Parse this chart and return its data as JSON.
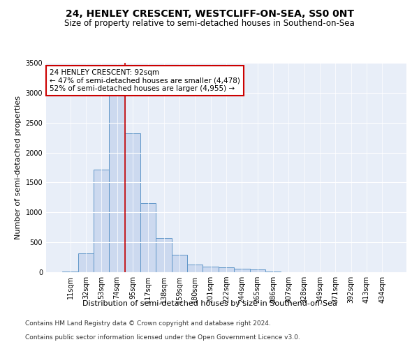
{
  "title": "24, HENLEY CRESCENT, WESTCLIFF-ON-SEA, SS0 0NT",
  "subtitle": "Size of property relative to semi-detached houses in Southend-on-Sea",
  "xlabel": "Distribution of semi-detached houses by size in Southend-on-Sea",
  "ylabel": "Number of semi-detached properties",
  "footer_line1": "Contains HM Land Registry data © Crown copyright and database right 2024.",
  "footer_line2": "Contains public sector information licensed under the Open Government Licence v3.0.",
  "annotation_line1": "24 HENLEY CRESCENT: 92sqm",
  "annotation_line2": "← 47% of semi-detached houses are smaller (4,478)",
  "annotation_line3": "52% of semi-detached houses are larger (4,955) →",
  "bar_categories": [
    "11sqm",
    "32sqm",
    "53sqm",
    "74sqm",
    "95sqm",
    "117sqm",
    "138sqm",
    "159sqm",
    "180sqm",
    "201sqm",
    "222sqm",
    "244sqm",
    "265sqm",
    "286sqm",
    "307sqm",
    "328sqm",
    "349sqm",
    "371sqm",
    "392sqm",
    "413sqm",
    "434sqm"
  ],
  "bar_values": [
    8,
    310,
    1720,
    3000,
    2320,
    1160,
    570,
    290,
    125,
    90,
    85,
    60,
    45,
    10,
    5,
    5,
    2,
    2,
    2,
    2,
    2
  ],
  "bar_color": "#ccd9ef",
  "bar_edge_color": "#6096c8",
  "vline_color": "#cc0000",
  "vline_x": 3.5,
  "ylim": [
    0,
    3500
  ],
  "yticks": [
    0,
    500,
    1000,
    1500,
    2000,
    2500,
    3000,
    3500
  ],
  "background_color": "#e8eef8",
  "annotation_box_facecolor": "#ffffff",
  "annotation_box_edgecolor": "#cc0000",
  "title_fontsize": 10,
  "subtitle_fontsize": 8.5,
  "xlabel_fontsize": 8,
  "ylabel_fontsize": 8,
  "tick_fontsize": 7,
  "annotation_fontsize": 7.5,
  "footer_fontsize": 6.5
}
